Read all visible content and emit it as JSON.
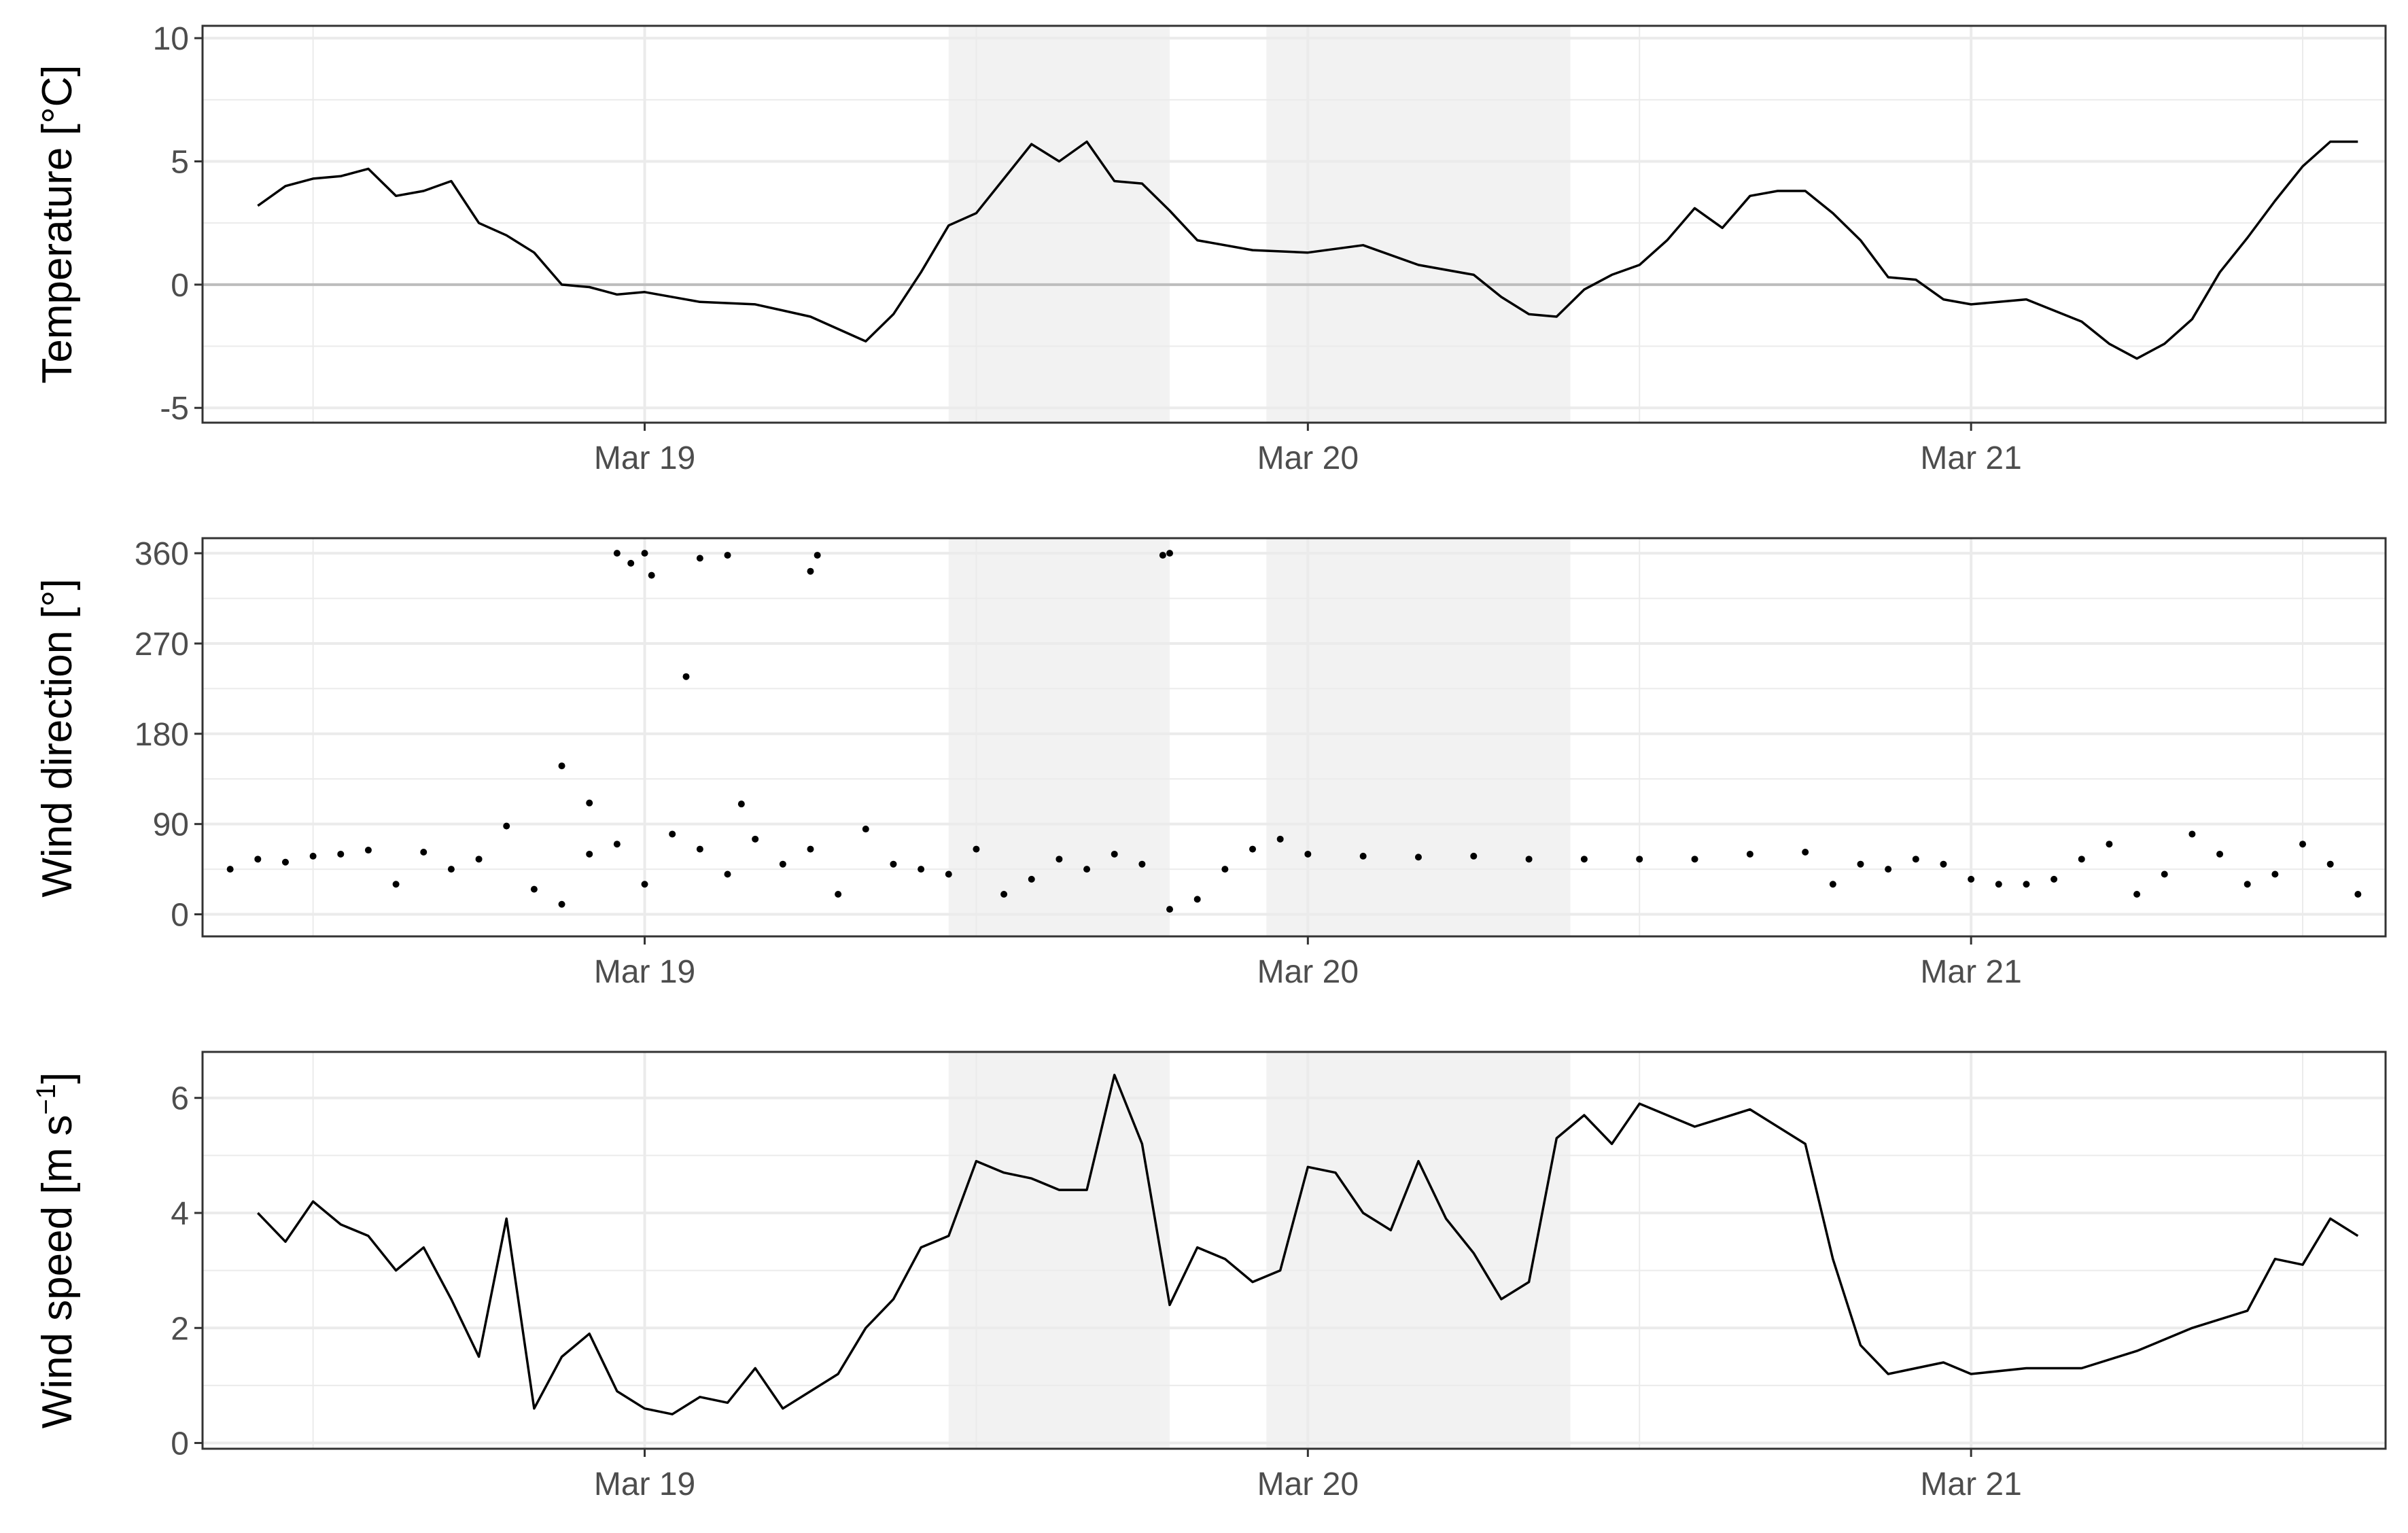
{
  "chart_data": [
    {
      "type": "line",
      "ylabel": "Temperature [°C]",
      "ylim": [
        -5.6,
        10.5
      ],
      "yticks": [
        -5,
        0,
        5,
        10
      ],
      "x_range_days": [
        "2024-03-18 09:00",
        "2024-03-21 14:00"
      ],
      "x_ticks": [
        {
          "label": "Mar 19",
          "x": "2024-03-19 00:00"
        },
        {
          "label": "Mar 20",
          "x": "2024-03-20 00:00"
        },
        {
          "label": "Mar 21",
          "x": "2024-03-21 00:00"
        }
      ],
      "shaded_intervals": [
        [
          "2024-03-19 11:00",
          "2024-03-19 19:00"
        ],
        [
          "2024-03-19 22:30",
          "2024-03-20 09:30"
        ]
      ],
      "zero_line": true,
      "series": [
        {
          "x": [
            "2024-03-18 10:00",
            "2024-03-18 11:00",
            "2024-03-18 12:00",
            "2024-03-18 13:00",
            "2024-03-18 14:00",
            "2024-03-18 15:00",
            "2024-03-18 16:00",
            "2024-03-18 17:00",
            "2024-03-18 18:00",
            "2024-03-18 19:00",
            "2024-03-18 20:00",
            "2024-03-18 21:00",
            "2024-03-18 22:00",
            "2024-03-18 23:00",
            "2024-03-19 00:00",
            "2024-03-19 02:00",
            "2024-03-19 04:00",
            "2024-03-19 06:00",
            "2024-03-19 08:00",
            "2024-03-19 09:00",
            "2024-03-19 10:00",
            "2024-03-19 11:00",
            "2024-03-19 12:00",
            "2024-03-19 13:00",
            "2024-03-19 14:00",
            "2024-03-19 15:00",
            "2024-03-19 16:00",
            "2024-03-19 17:00",
            "2024-03-19 18:00",
            "2024-03-19 19:00",
            "2024-03-19 20:00",
            "2024-03-19 22:00",
            "2024-03-20 00:00",
            "2024-03-20 02:00",
            "2024-03-20 04:00",
            "2024-03-20 06:00",
            "2024-03-20 07:00",
            "2024-03-20 08:00",
            "2024-03-20 09:00",
            "2024-03-20 10:00",
            "2024-03-20 11:00",
            "2024-03-20 12:00",
            "2024-03-20 13:00",
            "2024-03-20 14:00",
            "2024-03-20 15:00",
            "2024-03-20 16:00",
            "2024-03-20 17:00",
            "2024-03-20 18:00",
            "2024-03-20 19:00",
            "2024-03-20 20:00",
            "2024-03-20 21:00",
            "2024-03-20 22:00",
            "2024-03-20 23:00",
            "2024-03-21 00:00",
            "2024-03-21 02:00",
            "2024-03-21 04:00",
            "2024-03-21 05:00",
            "2024-03-21 06:00",
            "2024-03-21 07:00",
            "2024-03-21 08:00",
            "2024-03-21 09:00",
            "2024-03-21 10:00",
            "2024-03-21 11:00",
            "2024-03-21 12:00",
            "2024-03-21 13:00",
            "2024-03-21 14:00"
          ],
          "values": [
            3.2,
            4.0,
            4.3,
            4.4,
            4.7,
            3.6,
            3.8,
            4.2,
            2.5,
            2.0,
            1.3,
            0.0,
            -0.1,
            -0.4,
            -0.3,
            -0.7,
            -0.8,
            -1.3,
            -2.3,
            -1.2,
            0.5,
            2.4,
            2.9,
            4.3,
            5.7,
            5.0,
            5.8,
            4.2,
            4.1,
            3.0,
            1.8,
            1.4,
            1.3,
            1.6,
            0.8,
            0.4,
            -0.5,
            -1.2,
            -1.3,
            -0.2,
            0.4,
            0.8,
            1.8,
            3.1,
            2.3,
            3.6,
            3.8,
            3.8,
            2.9,
            1.8,
            0.3,
            0.2,
            -0.6,
            -0.8,
            -0.6,
            -1.5,
            -2.4,
            -3.0,
            -2.4,
            -1.4,
            0.5,
            1.9,
            3.4,
            4.8,
            5.8,
            5.8
          ]
        }
      ]
    },
    {
      "type": "scatter",
      "ylabel": "Wind direction [°]",
      "ylim": [
        -22,
        375
      ],
      "yticks": [
        0,
        90,
        180,
        270,
        360
      ],
      "x_ticks": [
        {
          "label": "Mar 19",
          "x": "2024-03-19 00:00"
        },
        {
          "label": "Mar 20",
          "x": "2024-03-20 00:00"
        },
        {
          "label": "Mar 21",
          "x": "2024-03-21 00:00"
        }
      ],
      "shaded_intervals": [
        [
          "2024-03-19 11:00",
          "2024-03-19 19:00"
        ],
        [
          "2024-03-19 22:30",
          "2024-03-20 09:30"
        ]
      ],
      "outliers": {
        "x": [
          "2024-03-18 23:00",
          "2024-03-18 23:30",
          "2024-03-19 00:00",
          "2024-03-19 00:15",
          "2024-03-19 02:00",
          "2024-03-19 03:00",
          "2024-03-19 06:00",
          "2024-03-19 06:15",
          "2024-03-19 18:45",
          "2024-03-19 19:00",
          "2024-03-19 01:30",
          "2024-03-18 21:00",
          "2024-03-18 22:00",
          "2024-03-19 03:30"
        ],
        "values": [
          360,
          350,
          360,
          338,
          355,
          358,
          342,
          358,
          358,
          360,
          237,
          148,
          111,
          110
        ]
      },
      "series": [
        {
          "x": [
            "2024-03-18 09:00",
            "2024-03-18 10:00",
            "2024-03-18 11:00",
            "2024-03-18 12:00",
            "2024-03-18 13:00",
            "2024-03-18 14:00",
            "2024-03-18 15:00",
            "2024-03-18 16:00",
            "2024-03-18 17:00",
            "2024-03-18 18:00",
            "2024-03-18 19:00",
            "2024-03-18 20:00",
            "2024-03-18 21:00",
            "2024-03-18 22:00",
            "2024-03-18 23:00",
            "2024-03-19 00:00",
            "2024-03-19 01:00",
            "2024-03-19 02:00",
            "2024-03-19 03:00",
            "2024-03-19 04:00",
            "2024-03-19 05:00",
            "2024-03-19 06:00",
            "2024-03-19 07:00",
            "2024-03-19 08:00",
            "2024-03-19 09:00",
            "2024-03-19 10:00",
            "2024-03-19 11:00",
            "2024-03-19 12:00",
            "2024-03-19 13:00",
            "2024-03-19 14:00",
            "2024-03-19 15:00",
            "2024-03-19 16:00",
            "2024-03-19 17:00",
            "2024-03-19 18:00",
            "2024-03-19 19:00",
            "2024-03-19 20:00",
            "2024-03-19 21:00",
            "2024-03-19 22:00",
            "2024-03-19 23:00",
            "2024-03-20 00:00",
            "2024-03-20 02:00",
            "2024-03-20 04:00",
            "2024-03-20 06:00",
            "2024-03-20 08:00",
            "2024-03-20 10:00",
            "2024-03-20 12:00",
            "2024-03-20 14:00",
            "2024-03-20 16:00",
            "2024-03-20 18:00",
            "2024-03-20 19:00",
            "2024-03-20 20:00",
            "2024-03-20 21:00",
            "2024-03-20 22:00",
            "2024-03-20 23:00",
            "2024-03-21 00:00",
            "2024-03-21 01:00",
            "2024-03-21 02:00",
            "2024-03-21 03:00",
            "2024-03-21 04:00",
            "2024-03-21 05:00",
            "2024-03-21 06:00",
            "2024-03-21 07:00",
            "2024-03-21 08:00",
            "2024-03-21 09:00",
            "2024-03-21 10:00",
            "2024-03-21 11:00",
            "2024-03-21 12:00",
            "2024-03-21 13:00",
            "2024-03-21 14:00"
          ],
          "values": [
            45,
            55,
            52,
            58,
            60,
            64,
            30,
            62,
            45,
            55,
            88,
            25,
            10,
            60,
            70,
            30,
            80,
            65,
            40,
            75,
            50,
            65,
            20,
            85,
            50,
            45,
            40,
            65,
            20,
            35,
            55,
            45,
            60,
            50,
            5,
            15,
            45,
            65,
            75,
            60,
            58,
            57,
            58,
            55,
            55,
            55,
            55,
            60,
            62,
            30,
            50,
            45,
            55,
            50,
            35,
            30,
            30,
            35,
            55,
            70,
            20,
            40,
            80,
            60,
            30,
            40,
            70,
            50,
            20
          ]
        }
      ]
    },
    {
      "type": "line",
      "ylabel": "Wind speed [m s",
      "ylabel_exponent": "−1",
      "ylabel_close": "]",
      "ylim": [
        -0.1,
        6.8
      ],
      "yticks": [
        0,
        2,
        4,
        6
      ],
      "x_ticks": [
        {
          "label": "Mar 19",
          "x": "2024-03-19 00:00"
        },
        {
          "label": "Mar 20",
          "x": "2024-03-20 00:00"
        },
        {
          "label": "Mar 21",
          "x": "2024-03-21 00:00"
        }
      ],
      "shaded_intervals": [
        [
          "2024-03-19 11:00",
          "2024-03-19 19:00"
        ],
        [
          "2024-03-19 22:30",
          "2024-03-20 09:30"
        ]
      ],
      "series": [
        {
          "x": [
            "2024-03-18 10:00",
            "2024-03-18 11:00",
            "2024-03-18 12:00",
            "2024-03-18 13:00",
            "2024-03-18 14:00",
            "2024-03-18 15:00",
            "2024-03-18 16:00",
            "2024-03-18 17:00",
            "2024-03-18 18:00",
            "2024-03-18 19:00",
            "2024-03-18 20:00",
            "2024-03-18 21:00",
            "2024-03-18 22:00",
            "2024-03-18 23:00",
            "2024-03-19 00:00",
            "2024-03-19 01:00",
            "2024-03-19 02:00",
            "2024-03-19 03:00",
            "2024-03-19 04:00",
            "2024-03-19 05:00",
            "2024-03-19 06:00",
            "2024-03-19 07:00",
            "2024-03-19 08:00",
            "2024-03-19 09:00",
            "2024-03-19 10:00",
            "2024-03-19 11:00",
            "2024-03-19 12:00",
            "2024-03-19 13:00",
            "2024-03-19 14:00",
            "2024-03-19 15:00",
            "2024-03-19 16:00",
            "2024-03-19 17:00",
            "2024-03-19 18:00",
            "2024-03-19 19:00",
            "2024-03-19 20:00",
            "2024-03-19 21:00",
            "2024-03-19 22:00",
            "2024-03-19 23:00",
            "2024-03-20 00:00",
            "2024-03-20 01:00",
            "2024-03-20 02:00",
            "2024-03-20 03:00",
            "2024-03-20 04:00",
            "2024-03-20 05:00",
            "2024-03-20 06:00",
            "2024-03-20 07:00",
            "2024-03-20 08:00",
            "2024-03-20 09:00",
            "2024-03-20 10:00",
            "2024-03-20 11:00",
            "2024-03-20 12:00",
            "2024-03-20 14:00",
            "2024-03-20 16:00",
            "2024-03-20 18:00",
            "2024-03-20 19:00",
            "2024-03-20 20:00",
            "2024-03-20 21:00",
            "2024-03-20 22:00",
            "2024-03-20 23:00",
            "2024-03-21 00:00",
            "2024-03-21 02:00",
            "2024-03-21 04:00",
            "2024-03-21 06:00",
            "2024-03-21 08:00",
            "2024-03-21 10:00",
            "2024-03-21 11:00",
            "2024-03-21 12:00",
            "2024-03-21 13:00",
            "2024-03-21 14:00"
          ],
          "values": [
            4.0,
            3.5,
            4.2,
            3.8,
            3.6,
            3.0,
            3.4,
            2.5,
            1.5,
            3.9,
            0.6,
            1.5,
            1.9,
            0.9,
            0.6,
            0.5,
            0.8,
            0.7,
            1.3,
            0.6,
            0.9,
            1.2,
            2.0,
            2.5,
            3.4,
            3.6,
            4.9,
            4.7,
            4.6,
            4.4,
            4.4,
            6.4,
            5.2,
            2.4,
            3.4,
            3.2,
            2.8,
            3.0,
            4.8,
            4.7,
            4.0,
            3.7,
            4.9,
            3.9,
            3.3,
            2.5,
            2.8,
            5.3,
            5.7,
            5.2,
            5.9,
            5.5,
            5.8,
            5.2,
            3.2,
            1.7,
            1.2,
            1.3,
            1.4,
            1.2,
            1.3,
            1.3,
            1.6,
            2.0,
            2.3,
            3.2,
            3.1,
            3.9,
            3.6
          ]
        }
      ]
    }
  ]
}
